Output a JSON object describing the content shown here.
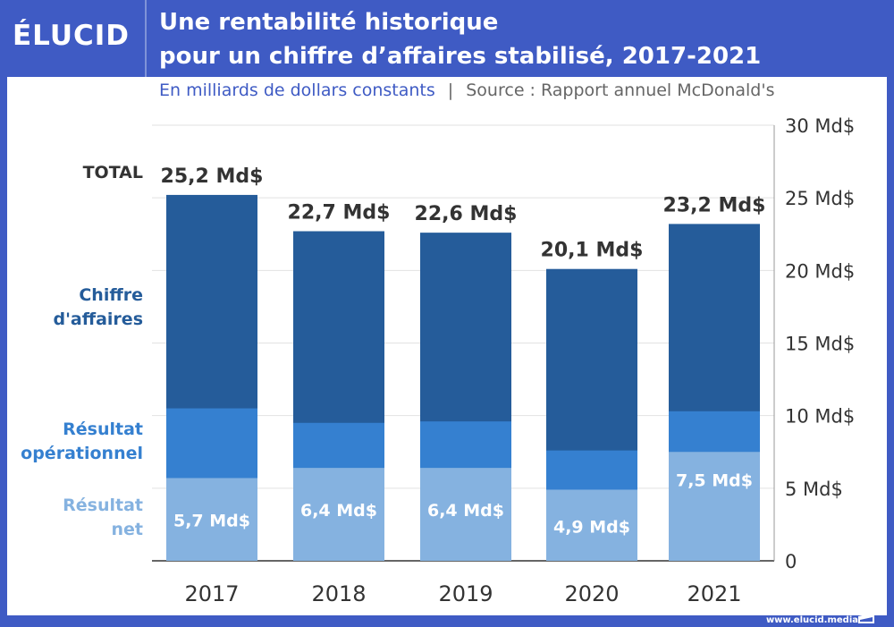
{
  "header": {
    "logo": "ÉLUCID",
    "title_line1": "Une rentabilité historique",
    "title_line2": "pour un chiffre d’affaires stabilisé, 2017-2021",
    "subtitle": "En milliards de dollars constants",
    "separator": "|",
    "source": "Source : Rapport annuel McDonald's"
  },
  "footer": {
    "url": "www.elucid.media"
  },
  "colors": {
    "brand": "#3f5bc4",
    "revenue": "#255c9a",
    "operating": "#3580d0",
    "net": "#85b2e0"
  },
  "chart_data": {
    "type": "bar",
    "stacked": "overlay",
    "categories": [
      "2017",
      "2018",
      "2019",
      "2020",
      "2021"
    ],
    "series": [
      {
        "name": "Chiffre d'affaires",
        "values": [
          25.2,
          22.7,
          22.6,
          20.1,
          23.2
        ],
        "labels": [
          "25,2 Md$",
          "22,7 Md$",
          "22,6 Md$",
          "20,1 Md$",
          "23,2 Md$"
        ]
      },
      {
        "name": "Résultat opérationnel",
        "values": [
          10.5,
          9.5,
          9.6,
          7.6,
          10.3
        ]
      },
      {
        "name": "Résultat net",
        "values": [
          5.7,
          6.4,
          6.4,
          4.9,
          7.5
        ],
        "labels": [
          "5,7 Md$",
          "6,4 Md$",
          "6,4 Md$",
          "4,9 Md$",
          "7,5 Md$"
        ]
      }
    ],
    "left_labels": {
      "total": "TOTAL",
      "revenue": [
        "Chiffre",
        "d'affaires"
      ],
      "operating": [
        "Résultat",
        "opérationnel"
      ],
      "net": [
        "Résultat",
        "net"
      ]
    },
    "yticks": [
      "0",
      "5 Md$",
      "10 Md$",
      "15 Md$",
      "20 Md$",
      "25 Md$",
      "30 Md$"
    ],
    "ylim": [
      0,
      30
    ],
    "grid": true,
    "yaxis_position": "right"
  }
}
